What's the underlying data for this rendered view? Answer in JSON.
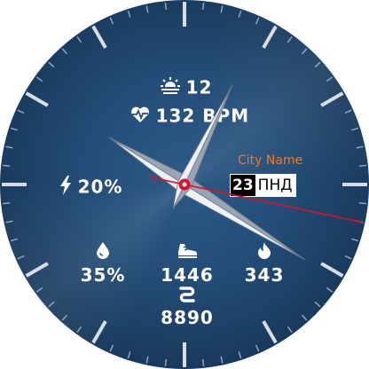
{
  "watch_face": {
    "weather": {
      "icon": "sunrise-icon",
      "value": "12"
    },
    "heart_rate": {
      "icon": "heart-rate-icon",
      "value": "132 BPM"
    },
    "battery": {
      "icon": "lightning-icon",
      "value": "20%"
    },
    "city": "City Name",
    "date": {
      "day": "23",
      "weekday": "ПНД"
    },
    "humidity": {
      "icon": "water-drop-icon",
      "value": "35%"
    },
    "steps": {
      "icon": "shoe-icon",
      "value": "1446"
    },
    "calories": {
      "icon": "flame-icon",
      "value": "343"
    },
    "distance": {
      "icon": "route-icon",
      "value": "8890"
    },
    "time": {
      "hour": 10,
      "minute": 4,
      "second": 17
    },
    "colors": {
      "dial": "#244e79",
      "accent": "#f07a1a",
      "second_hand": "#e0102a",
      "hands": "#c9ced6"
    }
  }
}
